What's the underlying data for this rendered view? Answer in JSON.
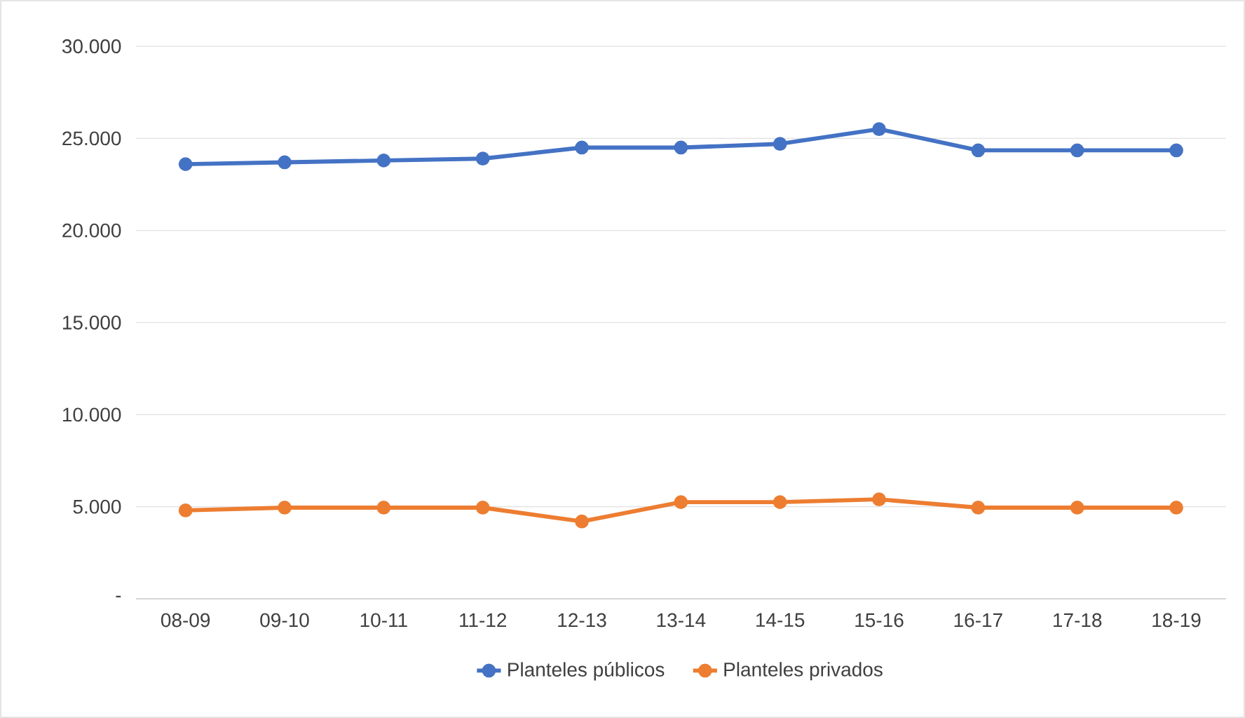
{
  "chart_data": {
    "type": "line",
    "categories": [
      "08-09",
      "09-10",
      "10-11",
      "11-12",
      "12-13",
      "13-14",
      "14-15",
      "15-16",
      "16-17",
      "17-18",
      "18-19"
    ],
    "series": [
      {
        "name": "Planteles públicos",
        "color": "#4472c4",
        "values": [
          23600,
          23700,
          23800,
          23900,
          24500,
          24500,
          24700,
          25500,
          24350,
          24350,
          24350
        ]
      },
      {
        "name": "Planteles privados",
        "color": "#ed7d31",
        "values": [
          4800,
          4950,
          4950,
          4950,
          4200,
          5250,
          5250,
          5400,
          4950,
          4950,
          4950
        ]
      }
    ],
    "ylim": [
      0,
      30000
    ],
    "yticks": [
      {
        "value": 0,
        "label": "-"
      },
      {
        "value": 5000,
        "label": "5.000"
      },
      {
        "value": 10000,
        "label": "10.000"
      },
      {
        "value": 15000,
        "label": "15.000"
      },
      {
        "value": 20000,
        "label": "20.000"
      },
      {
        "value": 25000,
        "label": "25.000"
      },
      {
        "value": 30000,
        "label": "30.000"
      }
    ],
    "grid": "y",
    "legend": "bottom",
    "marker": "circle",
    "line_style": "solid"
  }
}
